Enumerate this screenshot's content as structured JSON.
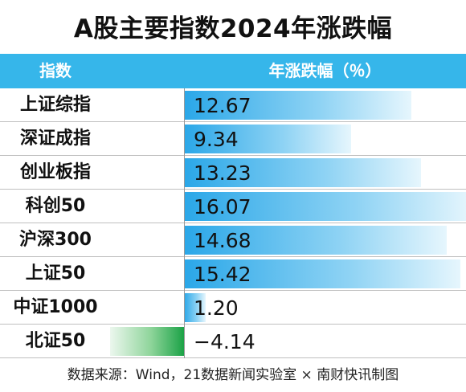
{
  "title": "A股主要指数2024年涨跌幅",
  "header": {
    "col_index": "指数",
    "col_change": "年涨跌幅（％）"
  },
  "source": "数据来源：Wind，21数据新闻实验室 × 南财快讯制图",
  "colors": {
    "header_bg": "#36b6ea",
    "positive_bar": "#2aa7e8",
    "negative_bar": "#1ba246"
  },
  "chart_data": {
    "type": "bar",
    "orientation": "horizontal",
    "categories": [
      "上证综指",
      "深证成指",
      "创业板指",
      "科创50",
      "沪深300",
      "上证50",
      "中证1000",
      "北证50"
    ],
    "values": [
      12.67,
      9.34,
      13.23,
      16.07,
      14.68,
      15.42,
      1.2,
      -4.14
    ],
    "value_labels": [
      "12.67",
      "9.34",
      "13.23",
      "16.07",
      "14.68",
      "15.42",
      "1.20",
      "−4.14"
    ],
    "title": "A股主要指数2024年涨跌幅",
    "xlabel": "年涨跌幅（％）",
    "ylabel": "指数",
    "xlim": [
      -4.14,
      16.07
    ]
  }
}
